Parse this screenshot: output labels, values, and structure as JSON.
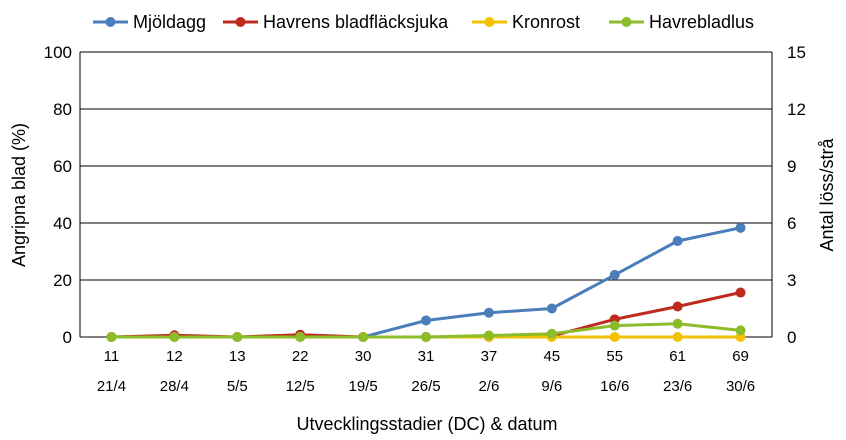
{
  "chart_data": {
    "type": "line",
    "categories_dc": [
      "11",
      "12",
      "13",
      "22",
      "30",
      "31",
      "37",
      "45",
      "55",
      "61",
      "69"
    ],
    "categories_date": [
      "21/4",
      "28/4",
      "5/5",
      "12/5",
      "19/5",
      "26/5",
      "2/6",
      "9/6",
      "16/6",
      "23/6",
      "30/6"
    ],
    "xlabel": "Utvecklingsstadier (DC) & datum",
    "ylabel": "Angripna blad (%)",
    "y2label": "Antal löss/strå",
    "ylim": [
      0,
      100
    ],
    "y2lim": [
      0,
      15
    ],
    "yticks": [
      "0",
      "20",
      "40",
      "60",
      "80",
      "100"
    ],
    "y2ticks": [
      "0",
      "3",
      "6",
      "9",
      "12",
      "15"
    ],
    "grid": true,
    "legend_position": "top",
    "series": [
      {
        "name": "Mjöldagg",
        "axis": "left",
        "color": "#4a7ebb",
        "values": [
          0,
          0,
          0,
          0,
          0,
          5.8,
          8.5,
          10.0,
          21.8,
          33.7,
          38.3
        ]
      },
      {
        "name": "Havrens bladfläcksjuka",
        "axis": "left",
        "color": "#be2a1d",
        "values": [
          0,
          0.6,
          0,
          0.8,
          0,
          0,
          0,
          0.3,
          6.2,
          10.7,
          15.6
        ]
      },
      {
        "name": "Kronrost",
        "axis": "left",
        "color": "#f2c200",
        "values": [
          0,
          0,
          0,
          0,
          0,
          0,
          0,
          0,
          0,
          0,
          0
        ]
      },
      {
        "name": "Havrebladlus",
        "axis": "right",
        "color": "#8cbb2b",
        "values": [
          0,
          0,
          0,
          0,
          0,
          0,
          0.08,
          0.17,
          0.6,
          0.7,
          0.35
        ]
      }
    ]
  }
}
